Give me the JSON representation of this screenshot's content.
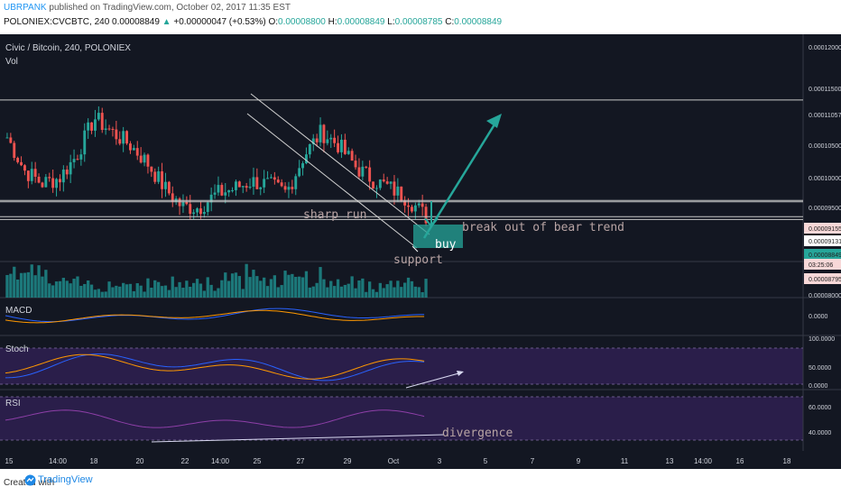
{
  "header": {
    "author": "UBRPANK",
    "published": "published on TradingView.com, October 02, 2017 11:35 EST",
    "symbol": "POLONIEX:CVCBTC, 240",
    "last": "0.00008849",
    "change_arrow": "▲",
    "change": "+0.00000047 (+0.53%)",
    "o_label": "O:",
    "o": "0.00008800",
    "h_label": "H:",
    "h": "0.00008849",
    "l_label": "L:",
    "l": "0.00008785",
    "c_label": "C:",
    "c": "0.00008849"
  },
  "chart_data": {
    "type": "candlestick",
    "title": "Civic / Bitcoin, 240, POLONIEX",
    "volume_label": "Vol",
    "x_ticks": [
      "15",
      "14:00",
      "18",
      "20",
      "22",
      "14:00",
      "25",
      "27",
      "29",
      "Oct",
      "3",
      "5",
      "7",
      "9",
      "11",
      "13",
      "14:00",
      "16",
      "18"
    ],
    "y_ticks": [
      "0.00012000",
      "0.00011500",
      "0.00011057",
      "0.00010500",
      "0.00010000",
      "0.00009500",
      "0.00009155",
      "0.00009131",
      "0.00008849",
      "03:25:06",
      "0.00008795",
      "0.00008000"
    ],
    "ylim": [
      8e-05,
      0.000123
    ],
    "price_path": [
      0.0001035,
      9.72e-05,
      9.48e-05,
      9.58e-05,
      0.0001002,
      0.0001072,
      0.0001045,
      0.0001022,
      9.88e-05,
      9.4e-05,
      9.04e-05,
      9.02e-05,
      9.28e-05,
      9.38e-05,
      9.52e-05,
      9.45e-05,
      9.3e-05,
      0.0001,
      0.0001045,
      0.000102,
      9.78e-05,
      9.54e-05,
      9.38e-05,
      9.18e-05,
      8.849e-05
    ],
    "key_levels": [
      0.00011057,
      9.155e-05,
      9.131e-05,
      8.849e-05,
      8.795e-05
    ],
    "annotations": {
      "sharp_run": "sharp run",
      "break_out": "break out of bear trend",
      "buy": "buy",
      "support": "support",
      "divergence": "divergence"
    },
    "indicators": {
      "macd": {
        "label": "MACD",
        "tick": "0.0000"
      },
      "stoch": {
        "label": "Stoch",
        "ticks": [
          "100.0000",
          "50.0000",
          "0.0000"
        ],
        "bands": [
          20,
          80
        ]
      },
      "rsi": {
        "label": "RSI",
        "ticks": [
          "60.0000",
          "40.0000"
        ],
        "bands": [
          30,
          70
        ]
      }
    },
    "colors": {
      "background": "#131722",
      "up": "#26a69a",
      "down": "#ef5350",
      "volume": "#1f8a8a",
      "macd": "#2962ff",
      "signal": "#ff9800",
      "stoch_fill": "#2a1e4a",
      "rsi_line": "#8e3fa8",
      "arrow": "#26a69a"
    }
  },
  "footer": {
    "created": "Created with",
    "brand": "TradingView"
  }
}
